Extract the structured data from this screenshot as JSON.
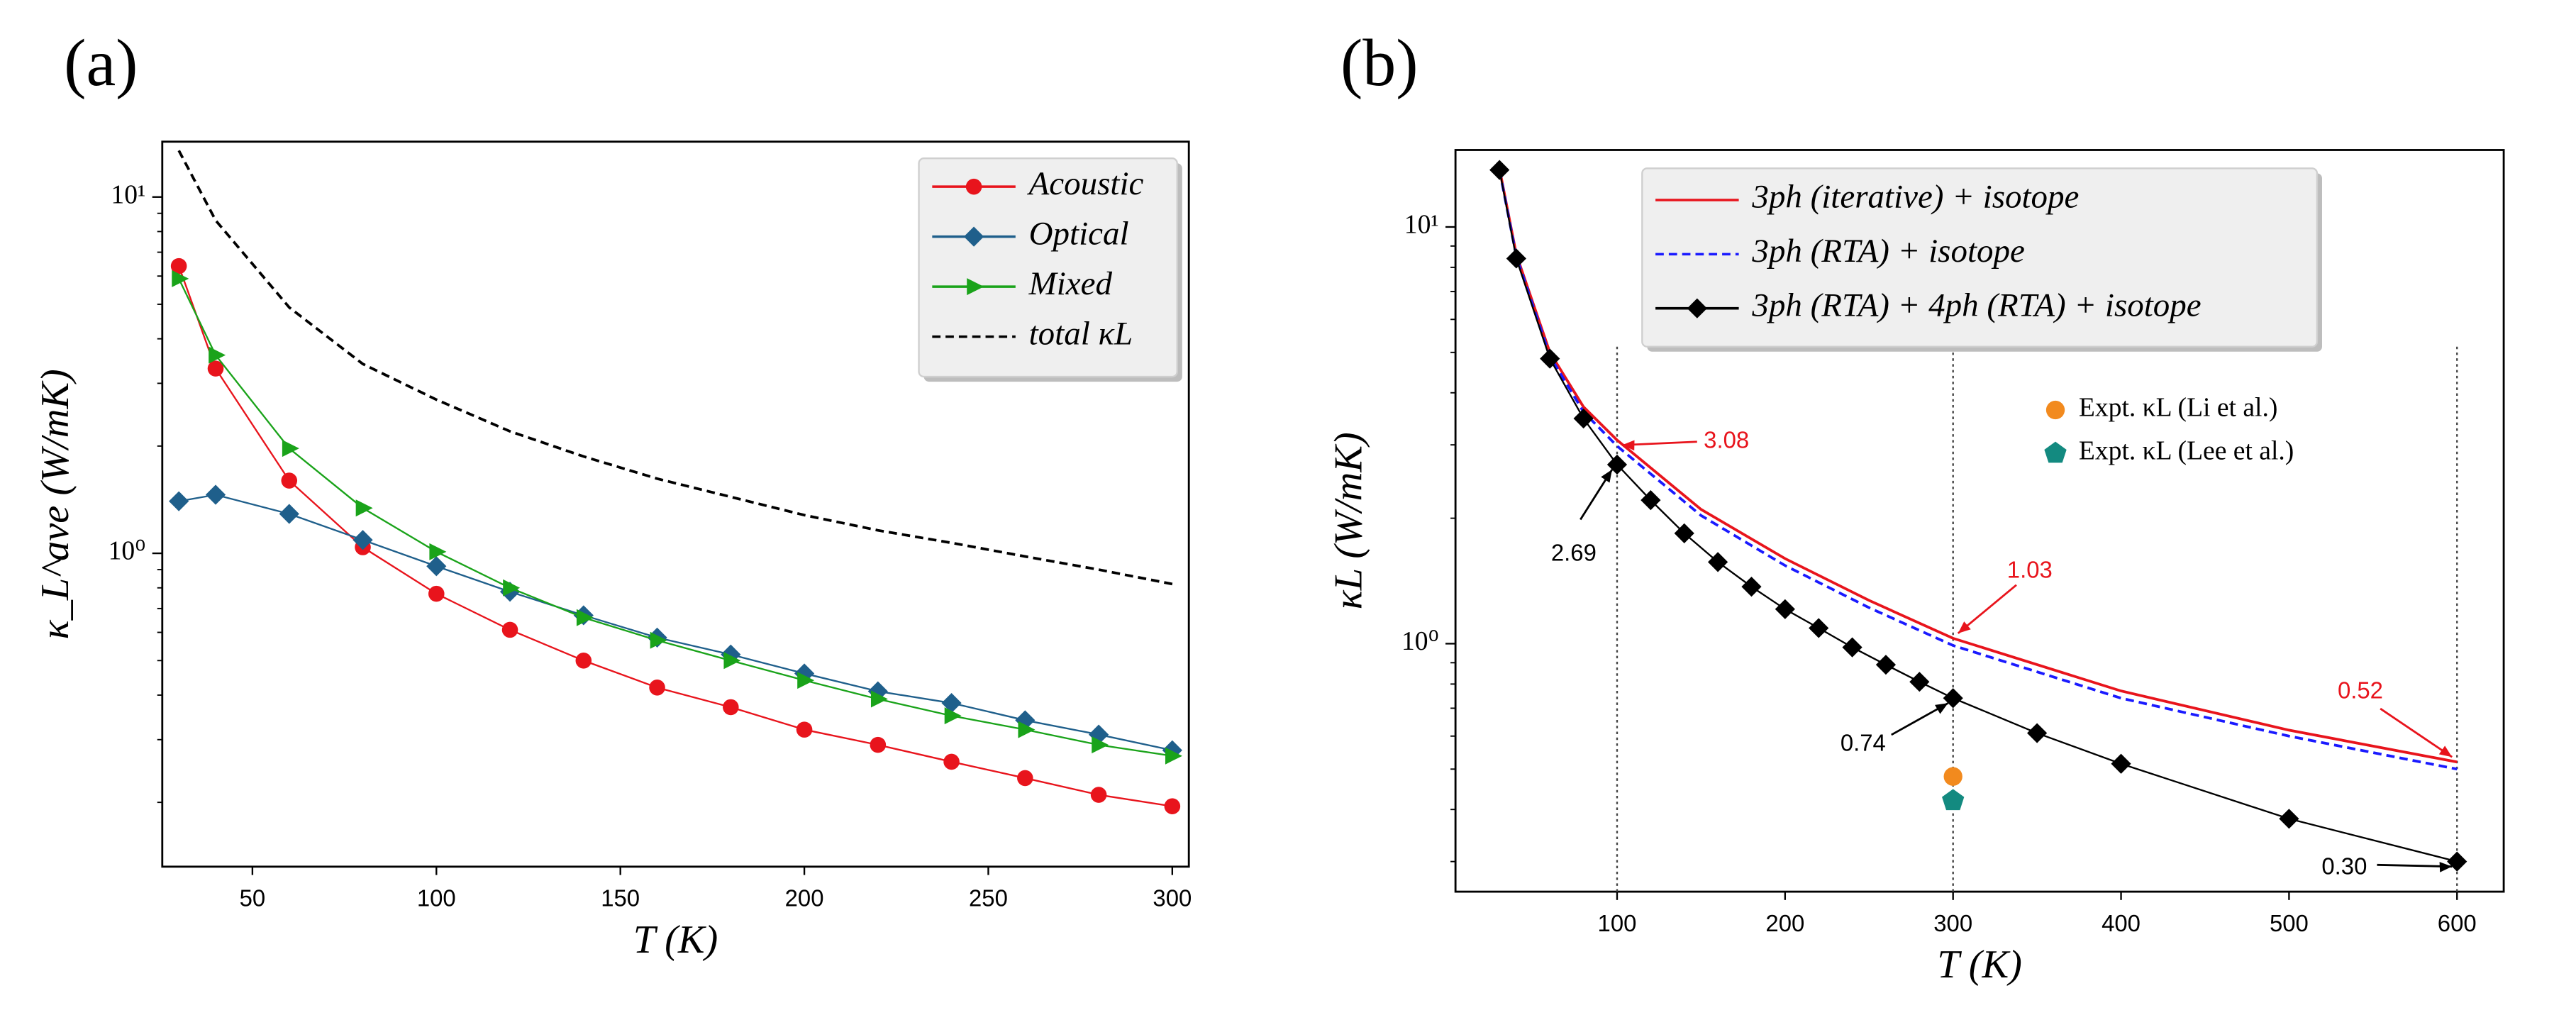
{
  "chart_data": [
    {
      "type": "line",
      "panel": "(a)",
      "xlabel": "T (K)",
      "ylabel": "κ_L^ave (W/mK)",
      "yscale": "log",
      "legend": "upper right",
      "xlim": [
        25.5,
        304.5
      ],
      "xticks": [
        50,
        100,
        150,
        200,
        250,
        300
      ],
      "ylim": [
        0.132,
        14.3
      ],
      "yticks": [
        {
          "value": 1,
          "label": "10⁰"
        },
        {
          "value": 10,
          "label": "10¹"
        }
      ],
      "x": [
        30,
        40,
        60,
        80,
        100,
        120,
        140,
        160,
        180,
        200,
        220,
        240,
        260,
        280,
        300
      ],
      "series": [
        {
          "name": "Acoustic",
          "color": "#e8141c",
          "marker": "circle",
          "values": [
            6.4,
            3.3,
            1.6,
            1.04,
            0.77,
            0.61,
            0.5,
            0.42,
            0.37,
            0.32,
            0.29,
            0.26,
            0.234,
            0.21,
            0.195
          ]
        },
        {
          "name": "Optical",
          "color": "#1f5f8b",
          "marker": "diamond",
          "values": [
            1.4,
            1.46,
            1.29,
            1.09,
            0.92,
            0.78,
            0.67,
            0.58,
            0.52,
            0.46,
            0.41,
            0.38,
            0.34,
            0.31,
            0.28
          ]
        },
        {
          "name": "Mixed",
          "color": "#1aa31a",
          "marker": "triangle",
          "values": [
            5.9,
            3.6,
            1.97,
            1.34,
            1.01,
            0.8,
            0.66,
            0.57,
            0.5,
            0.44,
            0.39,
            0.35,
            0.32,
            0.29,
            0.27
          ]
        },
        {
          "name": "total κL",
          "color": "#000000",
          "dash": "dashed",
          "values": [
            13.5,
            8.6,
            4.9,
            3.4,
            2.7,
            2.2,
            1.87,
            1.62,
            1.44,
            1.28,
            1.16,
            1.07,
            0.98,
            0.9,
            0.82
          ]
        }
      ]
    },
    {
      "type": "line",
      "panel": "(b)",
      "xlabel": "T (K)",
      "ylabel": "κL (W/mK)",
      "yscale": "log",
      "legend": "upper center",
      "xlim": [
        3.8,
        627.8
      ],
      "xticks": [
        100,
        200,
        300,
        400,
        500,
        600
      ],
      "ylim": [
        0.254,
        15.3
      ],
      "yticks": [
        {
          "value": 1,
          "label": "10⁰"
        },
        {
          "value": 10,
          "label": "10¹"
        }
      ],
      "vlines": [
        100,
        300,
        600
      ],
      "series": [
        {
          "name": "3ph (iterative) + isotope",
          "color": "#e8141c",
          "x": [
            30,
            40,
            60,
            80,
            100,
            150,
            200,
            250,
            300,
            400,
            500,
            600
          ],
          "values": [
            13.8,
            8.6,
            5.0,
            3.7,
            3.08,
            2.1,
            1.6,
            1.27,
            1.03,
            0.77,
            0.62,
            0.52
          ]
        },
        {
          "name": "3ph (RTA) + isotope",
          "color": "#1a1aff",
          "dash": "dashed",
          "x": [
            30,
            40,
            60,
            80,
            100,
            150,
            200,
            250,
            300,
            400,
            500,
            600
          ],
          "values": [
            13.7,
            8.5,
            4.9,
            3.6,
            2.98,
            2.03,
            1.54,
            1.22,
            0.99,
            0.74,
            0.6,
            0.5
          ]
        },
        {
          "name": "3ph (RTA) + 4ph (RTA) + isotope",
          "color": "#000000",
          "marker": "diamond",
          "x": [
            30,
            40,
            60,
            80,
            100,
            120,
            140,
            160,
            180,
            200,
            220,
            240,
            260,
            280,
            300,
            350,
            400,
            500,
            600
          ],
          "values": [
            13.7,
            8.4,
            4.83,
            3.47,
            2.69,
            2.21,
            1.84,
            1.57,
            1.37,
            1.21,
            1.09,
            0.98,
            0.89,
            0.81,
            0.74,
            0.61,
            0.515,
            0.38,
            0.3
          ]
        },
        {
          "name": "Expt. κL (Li et al.)",
          "color": "#f28a1e",
          "marker": "circle",
          "line": false,
          "x": [
            300
          ],
          "values": [
            0.48
          ]
        },
        {
          "name": "Expt. κL (Lee et al.)",
          "color": "#138a80",
          "marker": "pentagon",
          "line": false,
          "x": [
            300
          ],
          "values": [
            0.42
          ]
        }
      ],
      "annotations": [
        {
          "text": "3.08",
          "x": 100,
          "y": 3.08,
          "color": "#e8141c"
        },
        {
          "text": "2.69",
          "x": 100,
          "y": 2.69,
          "color": "#000000"
        },
        {
          "text": "1.03",
          "x": 300,
          "y": 1.03,
          "color": "#e8141c"
        },
        {
          "text": "0.74",
          "x": 300,
          "y": 0.74,
          "color": "#000000"
        },
        {
          "text": "0.52",
          "x": 600,
          "y": 0.52,
          "color": "#e8141c"
        },
        {
          "text": "0.30",
          "x": 600,
          "y": 0.3,
          "color": "#000000"
        }
      ]
    }
  ]
}
